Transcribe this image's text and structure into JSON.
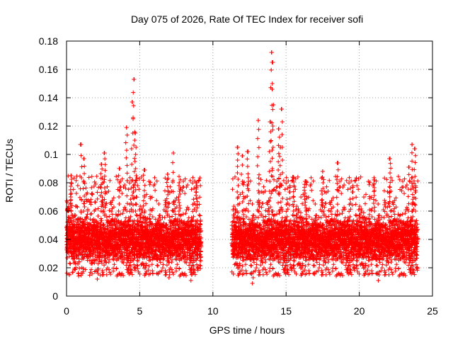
{
  "chart_data": {
    "type": "scatter",
    "title": "Day 075 of 2026, Rate Of TEC Index for receiver sofi",
    "xlabel": "GPS time / hours",
    "ylabel": "ROTI / TECUs",
    "xlim": [
      0,
      25
    ],
    "ylim": [
      0,
      0.18
    ],
    "xticks": [
      0,
      5,
      10,
      15,
      20,
      25
    ],
    "yticks": [
      0,
      0.02,
      0.04,
      0.06,
      0.08,
      0.1,
      0.12,
      0.14,
      0.16,
      0.18
    ],
    "xtick_labels": [
      "0",
      "5",
      "10",
      "15",
      "20",
      "25"
    ],
    "ytick_labels": [
      "0",
      "0.02",
      "0.04",
      "0.06",
      "0.08",
      "0.1",
      "0.12",
      "0.14",
      "0.16",
      "0.18"
    ],
    "grid": true,
    "marker": "+",
    "color": "#ff0000",
    "series": [
      {
        "name": "ROTI",
        "segments": [
          {
            "x_start": 0.0,
            "x_end": 9.2,
            "typical_low": 0.02,
            "typical_high": 0.06
          },
          {
            "x_start": 11.3,
            "x_end": 24.0,
            "typical_low": 0.02,
            "typical_high": 0.06
          }
        ],
        "peaks": [
          {
            "x": 0.1,
            "y": 0.062
          },
          {
            "x": 0.3,
            "y": 0.085
          },
          {
            "x": 1.0,
            "y": 0.107
          },
          {
            "x": 1.2,
            "y": 0.097
          },
          {
            "x": 2.4,
            "y": 0.093
          },
          {
            "x": 2.6,
            "y": 0.101
          },
          {
            "x": 3.6,
            "y": 0.09
          },
          {
            "x": 4.1,
            "y": 0.119
          },
          {
            "x": 4.5,
            "y": 0.137
          },
          {
            "x": 4.6,
            "y": 0.153
          },
          {
            "x": 4.7,
            "y": 0.115
          },
          {
            "x": 5.3,
            "y": 0.089
          },
          {
            "x": 6.9,
            "y": 0.086
          },
          {
            "x": 7.3,
            "y": 0.101
          },
          {
            "x": 7.7,
            "y": 0.08
          },
          {
            "x": 8.9,
            "y": 0.08
          },
          {
            "x": 11.7,
            "y": 0.105
          },
          {
            "x": 12.0,
            "y": 0.099
          },
          {
            "x": 12.4,
            "y": 0.102
          },
          {
            "x": 13.1,
            "y": 0.124
          },
          {
            "x": 13.9,
            "y": 0.123
          },
          {
            "x": 14.0,
            "y": 0.172
          },
          {
            "x": 14.1,
            "y": 0.165
          },
          {
            "x": 14.05,
            "y": 0.146
          },
          {
            "x": 14.5,
            "y": 0.118
          },
          {
            "x": 14.7,
            "y": 0.132
          },
          {
            "x": 14.6,
            "y": 0.105
          },
          {
            "x": 15.5,
            "y": 0.084
          },
          {
            "x": 16.3,
            "y": 0.081
          },
          {
            "x": 17.5,
            "y": 0.088
          },
          {
            "x": 18.5,
            "y": 0.094
          },
          {
            "x": 21.0,
            "y": 0.082
          },
          {
            "x": 22.1,
            "y": 0.097
          },
          {
            "x": 23.4,
            "y": 0.091
          },
          {
            "x": 23.6,
            "y": 0.107
          },
          {
            "x": 23.8,
            "y": 0.104
          }
        ],
        "lows": [
          {
            "x": 1.0,
            "y": 0.016
          },
          {
            "x": 2.1,
            "y": 0.012
          },
          {
            "x": 7.0,
            "y": 0.013
          },
          {
            "x": 8.5,
            "y": 0.011
          },
          {
            "x": 12.7,
            "y": 0.009
          },
          {
            "x": 21.3,
            "y": 0.011
          }
        ]
      }
    ]
  }
}
